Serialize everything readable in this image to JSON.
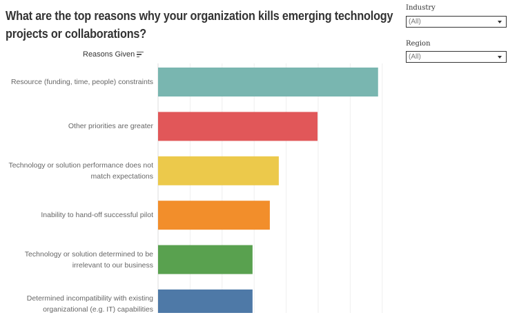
{
  "title": "What are the top reasons why your organization kills emerging technology projects or collaborations?",
  "filters": {
    "industry": {
      "label": "Industry",
      "value": "(All)"
    },
    "region": {
      "label": "Region",
      "value": "(All)"
    }
  },
  "chart_data": {
    "type": "bar",
    "orientation": "horizontal",
    "header": "Reasons Given",
    "categories": [
      "Resource (funding, time, people) constraints",
      "Other priorities are greater",
      "Technology or solution performance does not match expectations",
      "Inability to hand-off successful pilot",
      "Technology or solution determined to be irrelevant to our business",
      "Determined incompatibility with existing organizational (e.g. IT) capabilities"
    ],
    "values": [
      6.87,
      4.98,
      3.77,
      3.49,
      2.95,
      2.95
    ],
    "colors": [
      "#79b6b0",
      "#e15759",
      "#ecc94b",
      "#f28e2b",
      "#59a14f",
      "#4e79a7"
    ],
    "xlim": [
      0,
      7.2
    ],
    "grid": true,
    "value_axis_shown": false
  }
}
